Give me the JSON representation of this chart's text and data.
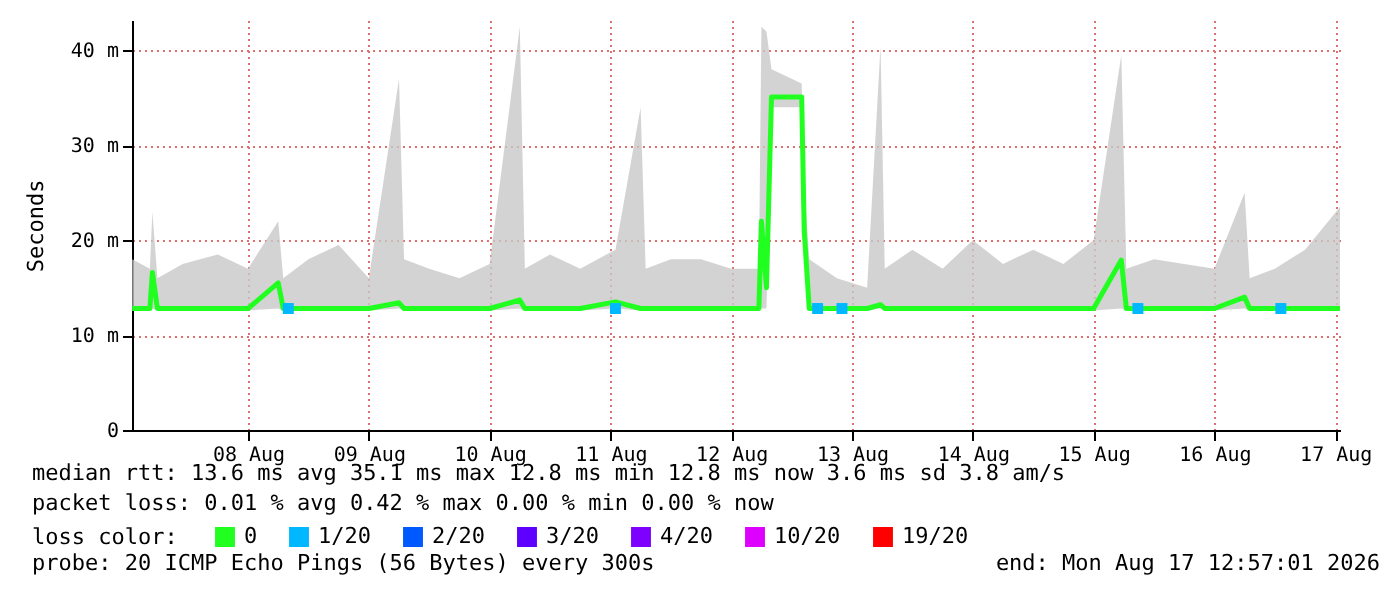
{
  "chart_data": {
    "type": "line",
    "ylabel": "Seconds",
    "legend_title": "loss color:",
    "legend": "bottom",
    "grid": true,
    "marker": "none",
    "xlim": [
      "2026-08-07T12:57",
      "2026-08-17T12:57"
    ],
    "xticks": [
      {
        "value": "2026-08-08T12:00",
        "label": "08 Aug"
      },
      {
        "value": "2026-08-09T12:00",
        "label": "09 Aug"
      },
      {
        "value": "2026-08-10T12:00",
        "label": "10 Aug"
      },
      {
        "value": "2026-08-11T12:00",
        "label": "11 Aug"
      },
      {
        "value": "2026-08-12T12:00",
        "label": "12 Aug"
      },
      {
        "value": "2026-08-13T12:00",
        "label": "13 Aug"
      },
      {
        "value": "2026-08-14T12:00",
        "label": "14 Aug"
      },
      {
        "value": "2026-08-15T12:00",
        "label": "15 Aug"
      },
      {
        "value": "2026-08-16T12:00",
        "label": "16 Aug"
      },
      {
        "value": "2026-08-17T12:00",
        "label": "17 Aug"
      }
    ],
    "ylim": [
      0,
      43.2
    ],
    "yticks": [
      0,
      {
        "value": 10,
        "label": "10 m"
      },
      {
        "value": 20,
        "label": "20 m"
      },
      {
        "value": 30,
        "label": "30 m"
      },
      {
        "value": 40,
        "label": "40 m"
      }
    ],
    "series": [
      {
        "name": "0",
        "color": "#20ff20",
        "x": [
          "2026-08-07T13:00",
          "2026-08-07T16:30",
          "2026-08-07T17:00",
          "2026-08-07T18:00",
          "2026-08-07T23:00",
          "2026-08-08T06:00",
          "2026-08-08T12:00",
          "2026-08-08T18:00",
          "2026-08-08T19:00",
          "2026-08-09T00:00",
          "2026-08-09T06:00",
          "2026-08-09T12:00",
          "2026-08-09T18:00",
          "2026-08-09T19:00",
          "2026-08-10T00:00",
          "2026-08-10T06:00",
          "2026-08-10T12:00",
          "2026-08-10T18:00",
          "2026-08-10T19:00",
          "2026-08-11T00:00",
          "2026-08-11T06:00",
          "2026-08-11T13:00",
          "2026-08-11T18:00",
          "2026-08-11T19:00",
          "2026-08-12T00:00",
          "2026-08-12T06:00",
          "2026-08-12T12:00",
          "2026-08-12T17:30",
          "2026-08-12T18:00",
          "2026-08-12T19:00",
          "2026-08-12T20:00",
          "2026-08-13T02:00",
          "2026-08-13T02:30",
          "2026-08-13T03:30",
          "2026-08-13T09:00",
          "2026-08-13T15:00",
          "2026-08-13T17:40",
          "2026-08-13T18:30",
          "2026-08-14T00:00",
          "2026-08-14T06:00",
          "2026-08-14T12:00",
          "2026-08-14T18:00",
          "2026-08-15T00:00",
          "2026-08-15T06:00",
          "2026-08-15T12:00",
          "2026-08-15T17:30",
          "2026-08-15T18:30",
          "2026-08-16T00:00",
          "2026-08-16T06:00",
          "2026-08-16T12:00",
          "2026-08-16T18:00",
          "2026-08-16T19:00",
          "2026-08-17T00:00",
          "2026-08-17T06:00",
          "2026-08-17T12:57"
        ],
        "values": [
          12.8,
          12.8,
          16.6,
          12.8,
          12.8,
          12.8,
          12.8,
          15.5,
          12.8,
          12.8,
          12.8,
          12.8,
          13.4,
          12.8,
          12.8,
          12.8,
          12.8,
          13.7,
          12.8,
          12.8,
          12.8,
          13.5,
          12.8,
          12.8,
          12.8,
          12.8,
          12.8,
          12.8,
          22,
          15,
          35.1,
          35.1,
          21,
          12.8,
          12.8,
          12.8,
          13.2,
          12.8,
          12.8,
          12.8,
          12.8,
          12.8,
          12.8,
          12.8,
          12.8,
          17.9,
          12.8,
          12.8,
          12.8,
          12.8,
          14,
          12.8,
          12.8,
          12.8,
          12.8
        ],
        "lower": [
          12.6,
          12.6,
          12.8,
          12.6,
          12.6,
          12.6,
          12.6,
          12.8,
          12.6,
          12.6,
          12.6,
          12.6,
          12.8,
          12.6,
          12.6,
          12.6,
          12.6,
          12.8,
          12.6,
          12.6,
          12.6,
          12.8,
          12.6,
          12.6,
          12.6,
          12.6,
          12.6,
          12.6,
          12.8,
          12.8,
          34,
          34,
          20,
          12.6,
          12.6,
          12.6,
          12.8,
          12.6,
          12.6,
          12.6,
          12.6,
          12.6,
          12.6,
          12.6,
          12.6,
          12.8,
          12.6,
          12.6,
          12.6,
          12.6,
          12.8,
          12.6,
          12.6,
          12.6,
          12.6
        ],
        "upper": [
          18,
          17,
          23,
          16,
          17.5,
          18.5,
          17,
          22,
          16,
          18,
          19.5,
          16,
          37,
          18,
          17,
          16,
          17.5,
          42.5,
          17,
          18.5,
          17,
          19,
          34,
          17,
          18,
          18,
          17,
          17,
          42.5,
          42,
          38,
          36.5,
          26,
          18,
          16,
          15,
          40.5,
          17,
          19,
          17,
          20,
          17.5,
          19,
          17.5,
          20,
          39.5,
          17,
          18,
          17.5,
          17,
          25,
          16,
          17,
          19,
          23.5
        ]
      },
      {
        "name": "1/20",
        "color": "#00b8ff",
        "type": "scatter",
        "marker": "square",
        "x": [
          "2026-08-08T20:00",
          "2026-08-11T13:00",
          "2026-08-13T05:10",
          "2026-08-13T10:00",
          "2026-08-15T20:48",
          "2026-08-17T01:12"
        ],
        "values": [
          12.8,
          12.8,
          12.8,
          12.8,
          12.8,
          12.8
        ]
      },
      {
        "name": "2/20",
        "color": "#0059ff"
      },
      {
        "name": "3/20",
        "color": "#5e00ff"
      },
      {
        "name": "4/20",
        "color": "#7e00ff"
      },
      {
        "name": "10/20",
        "color": "#dd00ff"
      },
      {
        "name": "19/20",
        "color": "#ff0000"
      }
    ],
    "annotations": [
      "median rtt:  13.6 ms avg  35.1 ms max  12.8 ms min  12.8 ms now  3.6 ms sd  3.8   am/s",
      "packet loss: 0.01 % avg  0.42 % max  0.00 % min  0.00 % now",
      "probe:       20 ICMP Echo Pings (56 Bytes) every 300s",
      "end: Mon Aug 17 12:57:01 2026"
    ]
  }
}
